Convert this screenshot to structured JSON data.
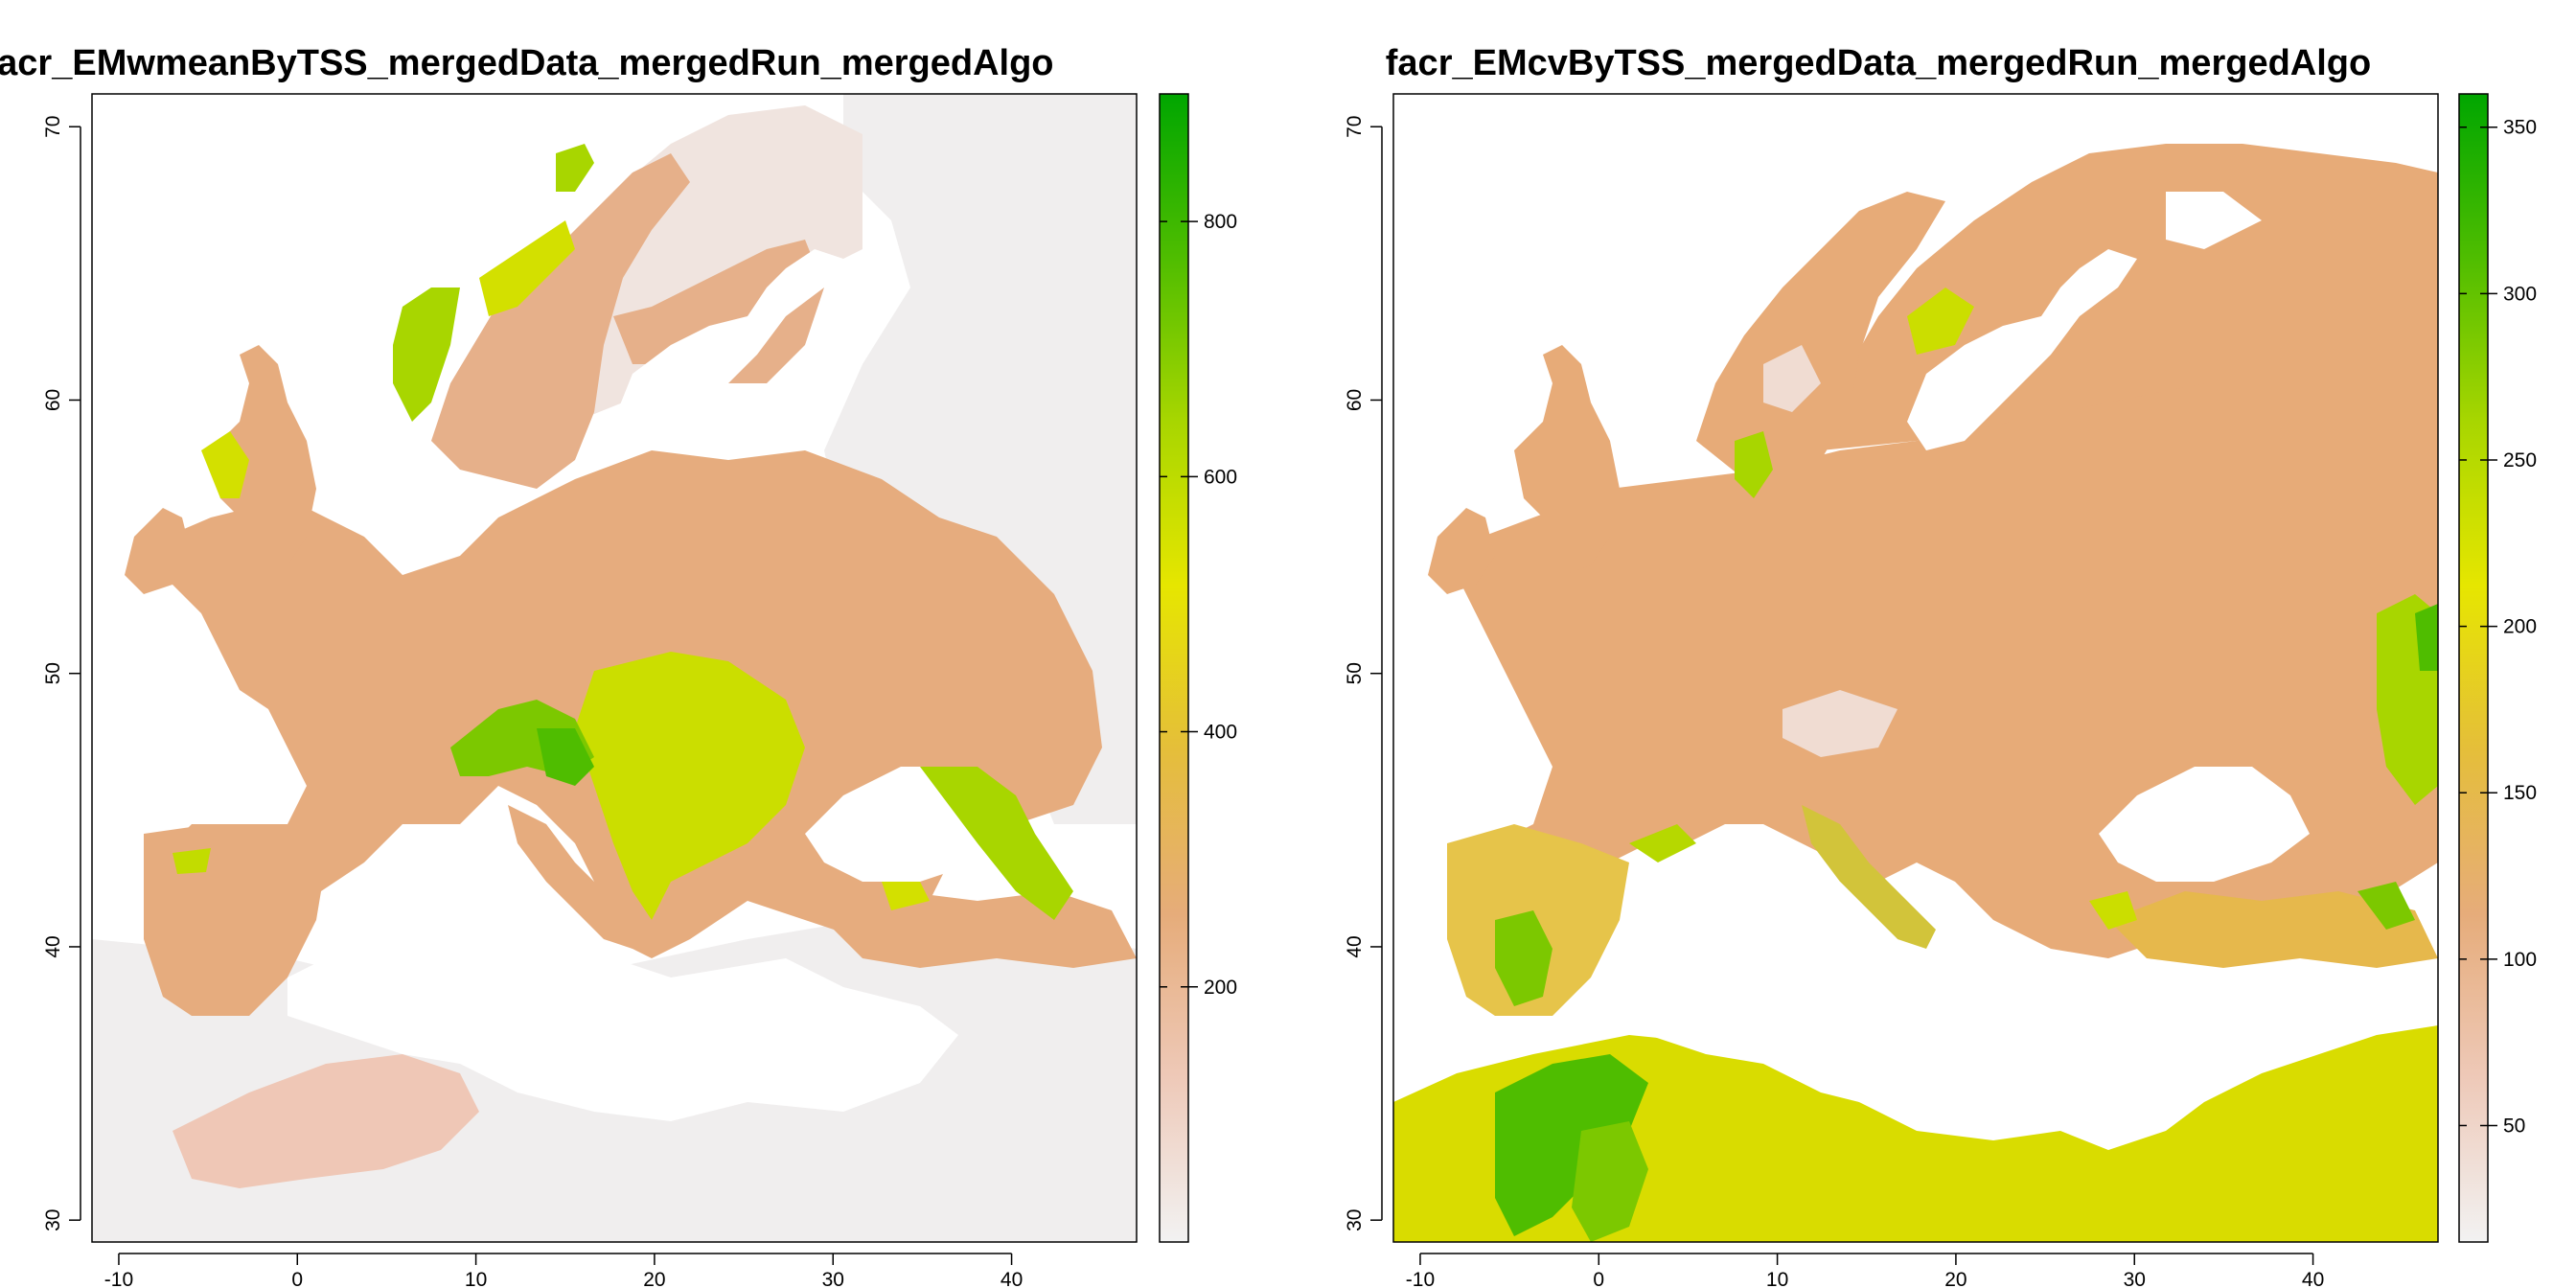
{
  "panels": [
    {
      "title": "facr_EMwmeanByTSS_mergedData_mergedRun_mergedAlgo",
      "x_ticks": [
        "-10",
        "0",
        "10",
        "20",
        "30",
        "40"
      ],
      "y_ticks": [
        "30",
        "40",
        "50",
        "60",
        "70"
      ],
      "legend": {
        "ticks": [
          "200",
          "400",
          "600",
          "800"
        ],
        "tick_values": [
          200,
          400,
          600,
          800
        ],
        "min": 0,
        "max": 900,
        "colors": [
          "#f2f2f2",
          "#eec9b8",
          "#e6ac7a",
          "#e5be3a",
          "#e6e600",
          "#a8d600",
          "#4fbd00",
          "#00a600"
        ]
      },
      "land_color": "#e7b08b",
      "hotspot_colors": [
        "#e6e600",
        "#a8d600",
        "#4fbd00",
        "#1aa800"
      ]
    },
    {
      "title": "facr_EMcvByTSS_mergedData_mergedRun_mergedAlgo",
      "x_ticks": [
        "-10",
        "0",
        "10",
        "20",
        "30",
        "40"
      ],
      "y_ticks": [
        "30",
        "40",
        "50",
        "60",
        "70"
      ],
      "legend": {
        "ticks": [
          "50",
          "100",
          "150",
          "200",
          "250",
          "300",
          "350"
        ],
        "tick_values": [
          50,
          100,
          150,
          200,
          250,
          300,
          350
        ],
        "min": 15,
        "max": 360,
        "colors": [
          "#f2f2f2",
          "#eec9b8",
          "#e6ac7a",
          "#e5be3a",
          "#e6e600",
          "#a8d600",
          "#4fbd00",
          "#00a600"
        ]
      },
      "land_color": "#e7ab78",
      "hotspot_colors": [
        "#d9e000",
        "#a8d600",
        "#4fbd00",
        "#1aa800"
      ]
    }
  ]
}
